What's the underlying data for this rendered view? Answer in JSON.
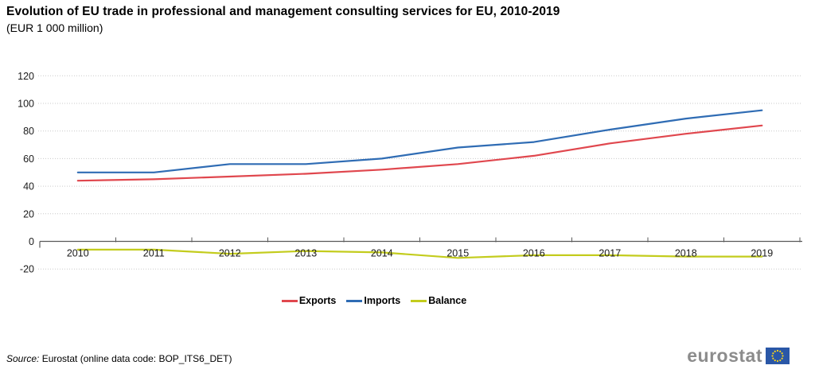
{
  "header": {
    "title": "Evolution of EU trade in professional and management consulting services for EU, 2010-2019",
    "subtitle": "(EUR 1 000 million)"
  },
  "chart_data": {
    "type": "line",
    "title": "Evolution of EU trade in professional and management consulting services for EU, 2010-2019",
    "subtitle": "(EUR 1 000 million)",
    "categories": [
      "2010",
      "2011",
      "2012",
      "2013",
      "2014",
      "2015",
      "2016",
      "2017",
      "2018",
      "2019"
    ],
    "series": [
      {
        "name": "Exports",
        "color": "#e0474e",
        "values": [
          44,
          45,
          47,
          49,
          52,
          56,
          62,
          71,
          78,
          84
        ]
      },
      {
        "name": "Imports",
        "color": "#2f6cb4",
        "values": [
          50,
          50,
          56,
          56,
          60,
          68,
          72,
          81,
          89,
          95
        ]
      },
      {
        "name": "Balance",
        "color": "#c3cc1d",
        "values": [
          -6,
          -6,
          -9,
          -7,
          -8,
          -12,
          -10,
          -10,
          -11,
          -11
        ]
      }
    ],
    "xlabel": "",
    "ylabel": "",
    "ylim": [
      -20,
      120
    ],
    "ytick_step": 20,
    "yticks": [
      -20,
      0,
      20,
      40,
      60,
      80,
      100,
      120
    ],
    "grid": true,
    "gridline_style": "dotted",
    "legend_position": "bottom"
  },
  "source": {
    "prefix": "Source:",
    "text": " Eurostat (online data code: BOP_ITS6_DET)"
  },
  "logo": {
    "text": "eurostat",
    "text_color": "#8c8c8c",
    "flag_blue": "#2a57a7",
    "star_yellow": "#f8d21a"
  }
}
